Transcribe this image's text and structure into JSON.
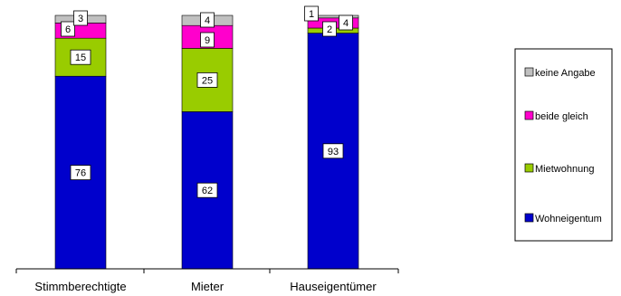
{
  "chart_data": {
    "type": "bar",
    "stacked": true,
    "title": "",
    "xlabel": "",
    "ylabel": "",
    "ylim": [
      0,
      100
    ],
    "categories": [
      "Stimmberechtigte",
      "Mieter",
      "Hauseigentümer"
    ],
    "series": [
      {
        "name": "Wohneigentum",
        "color": "#0000cc",
        "values": [
          76,
          62,
          93
        ]
      },
      {
        "name": "Mietwohnung",
        "color": "#99cc00",
        "values": [
          15,
          25,
          2
        ]
      },
      {
        "name": "beide gleich",
        "color": "#ff00cc",
        "values": [
          6,
          9,
          4
        ]
      },
      {
        "name": "keine Angabe",
        "color": "#c0c0c0",
        "values": [
          3,
          4,
          1
        ]
      }
    ],
    "legend": {
      "position": "right",
      "order": [
        "keine Angabe",
        "beide gleich",
        "Mietwohnung",
        "Wohneigentum"
      ]
    },
    "grid": false
  }
}
